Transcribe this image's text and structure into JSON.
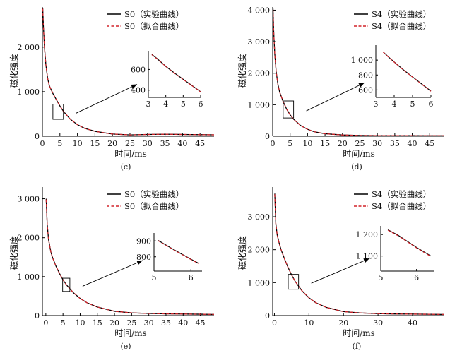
{
  "chart_data": [
    {
      "id": "c",
      "type": "line",
      "sublabel": "(c)",
      "xlabel": "时间/ms",
      "ylabel": "磁化强度",
      "xlim": [
        0,
        49
      ],
      "ylim": [
        0,
        2900
      ],
      "xticks": [
        0,
        5,
        10,
        15,
        20,
        25,
        30,
        35,
        40,
        45
      ],
      "yticks": [
        0,
        1000,
        2000
      ],
      "ytick_labels": [
        "0",
        "1 000",
        "2 000"
      ],
      "legend": "top-right",
      "series": [
        {
          "name": "S0（实验曲线）",
          "color": "#000000",
          "dash": "solid",
          "x": [
            0.1,
            0.3,
            0.6,
            1,
            1.5,
            2,
            3,
            4,
            5,
            6,
            8,
            10,
            12,
            15,
            20,
            25,
            30,
            35,
            40,
            45,
            49
          ],
          "y": [
            2880,
            2450,
            2000,
            1600,
            1300,
            1130,
            960,
            820,
            680,
            560,
            380,
            260,
            180,
            110,
            50,
            30,
            40,
            45,
            40,
            35,
            32
          ]
        },
        {
          "name": "S0（拟合曲线）",
          "color": "#d2232a",
          "dash": "dashed",
          "x": [
            0.1,
            0.3,
            0.6,
            1,
            1.5,
            2,
            3,
            4,
            5,
            6,
            8,
            10,
            12,
            15,
            20,
            25,
            30,
            35,
            40,
            45,
            49
          ],
          "y": [
            2860,
            2440,
            1990,
            1600,
            1300,
            1130,
            960,
            820,
            680,
            560,
            380,
            260,
            180,
            110,
            50,
            30,
            40,
            45,
            40,
            35,
            32
          ]
        }
      ],
      "zoom_box": {
        "x": [
          3,
          6
        ],
        "y": [
          380,
          720
        ]
      },
      "inset": {
        "xlim": [
          3,
          6
        ],
        "ylim": [
          330,
          780
        ],
        "xticks": [
          3,
          4,
          5,
          6
        ],
        "yticks": [
          400,
          600
        ],
        "ytick_labels": [
          "400",
          "600"
        ],
        "series": [
          {
            "x": [
              3.2,
              3.5,
              4,
              4.5,
              5,
              5.5,
              6
            ],
            "y": [
              745,
              705,
              630,
              565,
              505,
              445,
              385
            ],
            "color": "#000000",
            "dash": "solid"
          },
          {
            "x": [
              3.2,
              3.5,
              4,
              4.5,
              5,
              5.5,
              6
            ],
            "y": [
              742,
              702,
              628,
              563,
              503,
              443,
              383
            ],
            "color": "#d2232a",
            "dash": "dashed"
          }
        ]
      }
    },
    {
      "id": "d",
      "type": "line",
      "sublabel": "(d)",
      "xlabel": "时间/ms",
      "ylabel": "磁化强度",
      "xlim": [
        0,
        49
      ],
      "ylim": [
        0,
        4100
      ],
      "xticks": [
        0,
        5,
        10,
        15,
        20,
        25,
        30,
        35,
        40,
        45
      ],
      "yticks": [
        0,
        1000,
        2000,
        3000,
        4000
      ],
      "ytick_labels": [
        "0",
        "1 000",
        "2 000",
        "3 000",
        "4 000"
      ],
      "legend": "top-right",
      "series": [
        {
          "name": "S4（实验曲线）",
          "color": "#000000",
          "dash": "solid",
          "x": [
            0.1,
            0.3,
            0.6,
            1,
            1.5,
            2,
            3,
            4,
            5,
            6,
            8,
            10,
            12,
            15,
            20,
            25,
            30,
            35,
            40,
            45,
            49
          ],
          "y": [
            4050,
            3300,
            2600,
            2050,
            1650,
            1400,
            1100,
            860,
            680,
            540,
            340,
            220,
            140,
            80,
            40,
            25,
            20,
            20,
            18,
            15,
            15
          ]
        },
        {
          "name": "S4（拟合曲线）",
          "color": "#d2232a",
          "dash": "dashed",
          "x": [
            0.1,
            0.3,
            0.6,
            1,
            1.5,
            2,
            3,
            4,
            5,
            6,
            8,
            10,
            12,
            15,
            20,
            25,
            30,
            35,
            40,
            45,
            49
          ],
          "y": [
            4020,
            3290,
            2600,
            2050,
            1650,
            1400,
            1100,
            860,
            680,
            540,
            340,
            220,
            140,
            80,
            40,
            25,
            20,
            20,
            18,
            15,
            15
          ]
        }
      ],
      "zoom_box": {
        "x": [
          3,
          6
        ],
        "y": [
          580,
          1120
        ]
      },
      "inset": {
        "xlim": [
          3,
          6
        ],
        "ylim": [
          500,
          1200
        ],
        "xticks": [
          3,
          4,
          5,
          6
        ],
        "yticks": [
          600,
          800,
          1000
        ],
        "ytick_labels": [
          "600",
          "800",
          "1 000"
        ],
        "series": [
          {
            "x": [
              3.4,
              3.7,
              4,
              4.5,
              5,
              5.5,
              6
            ],
            "y": [
              1110,
              1040,
              975,
              870,
              775,
              680,
              585
            ],
            "color": "#000000",
            "dash": "solid"
          },
          {
            "x": [
              3.4,
              3.7,
              4,
              4.5,
              5,
              5.5,
              6
            ],
            "y": [
              1107,
              1037,
              972,
              867,
              772,
              677,
              582
            ],
            "color": "#d2232a",
            "dash": "dashed"
          }
        ]
      }
    },
    {
      "id": "e",
      "type": "line",
      "sublabel": "(e)",
      "xlabel": "时间/ms",
      "ylabel": "磁化强度",
      "xlim": [
        -1,
        49
      ],
      "ylim": [
        0,
        3300
      ],
      "xticks": [
        0,
        5,
        10,
        15,
        20,
        25,
        30,
        35,
        40,
        45
      ],
      "yticks": [
        0,
        1000,
        2000,
        3000
      ],
      "ytick_labels": [
        "0",
        "1 000",
        "2 000",
        "3 000"
      ],
      "legend": "top-right",
      "series": [
        {
          "name": "S0（实验曲线）",
          "color": "#000000",
          "dash": "solid",
          "x": [
            0.1,
            0.4,
            0.8,
            1.5,
            2,
            3,
            4,
            5,
            6,
            8,
            10,
            12,
            15,
            20,
            25,
            30,
            35,
            40,
            45,
            49
          ],
          "y": [
            3000,
            2350,
            1950,
            1620,
            1480,
            1260,
            1080,
            920,
            790,
            590,
            440,
            330,
            220,
            110,
            70,
            55,
            45,
            40,
            35,
            30
          ]
        },
        {
          "name": "S0（拟合曲线）",
          "color": "#d2232a",
          "dash": "dashed",
          "x": [
            0.1,
            0.4,
            0.8,
            1.5,
            2,
            3,
            4,
            5,
            6,
            8,
            10,
            12,
            15,
            20,
            25,
            30,
            35,
            40,
            45,
            49
          ],
          "y": [
            2980,
            2350,
            1950,
            1620,
            1480,
            1260,
            1080,
            920,
            790,
            590,
            440,
            330,
            220,
            110,
            70,
            55,
            45,
            40,
            35,
            30
          ]
        }
      ],
      "zoom_box": {
        "x": [
          4.9,
          7
        ],
        "y": [
          620,
          960
        ]
      },
      "inset": {
        "xlim": [
          5,
          6.3
        ],
        "ylim": [
          710,
          950
        ],
        "xticks": [
          5,
          6
        ],
        "yticks": [
          800,
          900
        ],
        "ytick_labels": [
          "800",
          "900"
        ],
        "series": [
          {
            "x": [
              5.1,
              5.5,
              6,
              6.2
            ],
            "y": [
              905,
              850,
              785,
              760
            ],
            "color": "#000000",
            "dash": "solid"
          },
          {
            "x": [
              5.1,
              5.5,
              6,
              6.2
            ],
            "y": [
              903,
              848,
              783,
              758
            ],
            "color": "#d2232a",
            "dash": "dashed"
          }
        ]
      }
    },
    {
      "id": "f",
      "type": "line",
      "sublabel": "(f)",
      "xlabel": "时间/ms",
      "ylabel": "磁化强度",
      "xlim": [
        -0.5,
        49
      ],
      "ylim": [
        0,
        3900
      ],
      "xticks": [
        0,
        10,
        20,
        30,
        40
      ],
      "yticks": [
        0,
        1000,
        2000,
        3000
      ],
      "ytick_labels": [
        "0",
        "1 000",
        "2 000",
        "3 000"
      ],
      "legend": "top-right",
      "series": [
        {
          "name": "S4（实验曲线）",
          "color": "#000000",
          "dash": "solid",
          "x": [
            0.1,
            0.4,
            0.8,
            1.5,
            2,
            3,
            4,
            5,
            6,
            8,
            10,
            12,
            15,
            20,
            25,
            30,
            35,
            40,
            45,
            49
          ],
          "y": [
            3700,
            2800,
            2450,
            2150,
            1980,
            1700,
            1450,
            1230,
            1040,
            750,
            540,
            390,
            250,
            120,
            80,
            60,
            50,
            45,
            40,
            35
          ]
        },
        {
          "name": "S4（拟合曲线）",
          "color": "#d2232a",
          "dash": "dashed",
          "x": [
            0.1,
            0.4,
            0.8,
            1.5,
            2,
            3,
            4,
            5,
            6,
            8,
            10,
            12,
            15,
            20,
            25,
            30,
            35,
            40,
            45,
            49
          ],
          "y": [
            3680,
            2800,
            2450,
            2150,
            1980,
            1700,
            1450,
            1230,
            1040,
            750,
            540,
            390,
            250,
            120,
            80,
            60,
            50,
            45,
            40,
            35
          ]
        }
      ],
      "zoom_box": {
        "x": [
          4,
          7
        ],
        "y": [
          800,
          1250
        ]
      },
      "inset": {
        "xlim": [
          5,
          6.5
        ],
        "ylim": [
          1030,
          1240
        ],
        "xticks": [
          5,
          6
        ],
        "yticks": [
          1100,
          1200
        ],
        "ytick_labels": [
          "1 100",
          "1 200"
        ],
        "series": [
          {
            "x": [
              5.2,
              5.5,
              6,
              6.4
            ],
            "y": [
              1222,
              1195,
              1140,
              1100
            ],
            "color": "#000000",
            "dash": "solid"
          },
          {
            "x": [
              5.2,
              5.5,
              6,
              6.4
            ],
            "y": [
              1220,
              1193,
              1138,
              1098
            ],
            "color": "#d2232a",
            "dash": "dashed"
          }
        ]
      }
    }
  ]
}
